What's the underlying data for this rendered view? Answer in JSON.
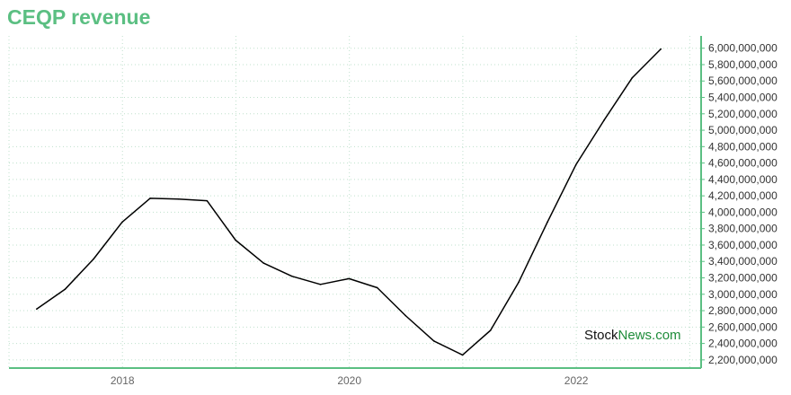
{
  "title": "CEQP revenue",
  "watermark": {
    "part1": "Stock",
    "part2": "News.com"
  },
  "colors": {
    "title": "#5bbf82",
    "axis": "#5bbf82",
    "grid": "#bfe0cc",
    "line": "#000000",
    "watermark_accent": "#1e8c3a"
  },
  "chart_data": {
    "type": "line",
    "title": "CEQP revenue",
    "xlabel": "",
    "ylabel": "",
    "x_ticks": [
      2018,
      2020,
      2022
    ],
    "y_ticks": [
      2200000000,
      2400000000,
      2600000000,
      2800000000,
      3000000000,
      3200000000,
      3400000000,
      3600000000,
      3800000000,
      4000000000,
      4200000000,
      4400000000,
      4600000000,
      4800000000,
      5000000000,
      5200000000,
      5400000000,
      5600000000,
      5800000000,
      6000000000
    ],
    "y_tick_labels": [
      "2,200,000,000",
      "2,400,000,000",
      "2,600,000,000",
      "2,800,000,000",
      "3,000,000,000",
      "3,200,000,000",
      "3,400,000,000",
      "3,600,000,000",
      "3,800,000,000",
      "4,000,000,000",
      "4,200,000,000",
      "4,400,000,000",
      "4,600,000,000",
      "4,800,000,000",
      "5,000,000,000",
      "5,200,000,000",
      "5,400,000,000",
      "5,600,000,000",
      "5,800,000,000",
      "6,000,000,000"
    ],
    "xlim": [
      2017.0,
      2023.1
    ],
    "ylim": [
      2100000000,
      6150000000
    ],
    "grid": true,
    "y_axis_side": "right",
    "series": [
      {
        "points": [
          {
            "x": "2017-03-31",
            "y": 2820000000
          },
          {
            "x": "2017-06-30",
            "y": 3060000000
          },
          {
            "x": "2017-09-30",
            "y": 3430000000
          },
          {
            "x": "2017-12-31",
            "y": 3880000000
          },
          {
            "x": "2018-03-31",
            "y": 4170000000
          },
          {
            "x": "2018-06-30",
            "y": 4160000000
          },
          {
            "x": "2018-09-30",
            "y": 4140000000
          },
          {
            "x": "2018-12-31",
            "y": 3660000000
          },
          {
            "x": "2019-03-31",
            "y": 3380000000
          },
          {
            "x": "2019-06-30",
            "y": 3220000000
          },
          {
            "x": "2019-09-30",
            "y": 3120000000
          },
          {
            "x": "2019-12-31",
            "y": 3190000000
          },
          {
            "x": "2020-03-31",
            "y": 3080000000
          },
          {
            "x": "2020-06-30",
            "y": 2740000000
          },
          {
            "x": "2020-09-30",
            "y": 2430000000
          },
          {
            "x": "2020-12-31",
            "y": 2260000000
          },
          {
            "x": "2021-03-31",
            "y": 2560000000
          },
          {
            "x": "2021-06-30",
            "y": 3150000000
          },
          {
            "x": "2021-09-30",
            "y": 3880000000
          },
          {
            "x": "2021-12-31",
            "y": 4580000000
          },
          {
            "x": "2022-03-31",
            "y": 5120000000
          },
          {
            "x": "2022-06-30",
            "y": 5640000000
          },
          {
            "x": "2022-09-30",
            "y": 5990000000
          }
        ]
      }
    ]
  }
}
